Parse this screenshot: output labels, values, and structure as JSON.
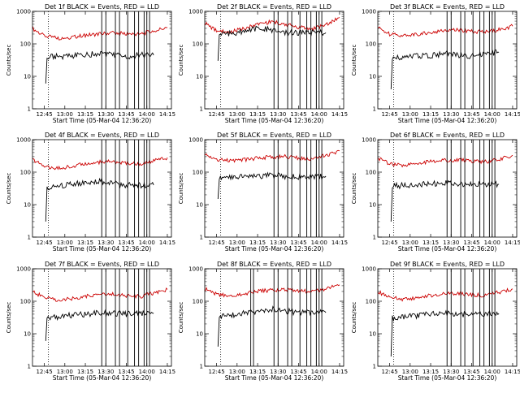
{
  "chart_data": [
    {
      "type": "line",
      "title": "Det 1f BLACK = Events, RED = LLD",
      "xlabel": "Start Time (05-Mar-04 12:36:20)",
      "ylabel": "Counts/sec",
      "yscale": "log",
      "ylim": [
        1,
        1000
      ],
      "y_ticks": [
        "1",
        "10",
        "100",
        "1000"
      ],
      "xlim": [
        "12:36:20",
        "14:18:00"
      ],
      "x_ticks": [
        "12:45",
        "13:00",
        "13:15",
        "13:30",
        "13:45",
        "14:00",
        "14:15"
      ],
      "dotted_marker": "12:48",
      "event_boundaries": [
        "13:27",
        "13:30",
        "13:37",
        "13:40",
        "13:46",
        "13:51",
        "13:54",
        "13:58",
        "14:00",
        "14:02"
      ],
      "series": [
        {
          "color": "#cc0000",
          "x": [
            "12:36",
            "12:45",
            "12:55",
            "13:05",
            "13:15",
            "13:25",
            "13:35",
            "13:45",
            "13:55",
            "14:05",
            "14:15"
          ],
          "y": [
            300,
            175,
            150,
            160,
            185,
            200,
            220,
            205,
            200,
            250,
            320
          ]
        },
        {
          "color": "#000000",
          "x": [
            "12:46",
            "12:47",
            "12:50",
            "13:00",
            "13:10",
            "13:20",
            "13:27",
            "13:35",
            "13:45",
            "13:55",
            "14:05"
          ],
          "y": [
            6,
            35,
            40,
            42,
            45,
            48,
            52,
            45,
            40,
            45,
            45
          ]
        }
      ]
    },
    {
      "type": "line",
      "title": "Det 2f BLACK = Events, RED = LLD",
      "xlabel": "Start Time (05-Mar-04 12:36:20)",
      "ylabel": "Counts/sec",
      "yscale": "log",
      "ylim": [
        1,
        1000
      ],
      "y_ticks": [
        "1",
        "10",
        "100",
        "1000"
      ],
      "xlim": [
        "12:36:20",
        "14:18:00"
      ],
      "x_ticks": [
        "12:45",
        "13:00",
        "13:15",
        "13:30",
        "13:45",
        "14:00",
        "14:15"
      ],
      "dotted_marker": "12:48",
      "event_boundaries": [
        "13:27",
        "13:30",
        "13:37",
        "13:40",
        "13:46",
        "13:51",
        "13:54",
        "13:58",
        "14:00",
        "14:02"
      ],
      "series": [
        {
          "color": "#cc0000",
          "x": [
            "12:36",
            "12:45",
            "12:55",
            "13:05",
            "13:15",
            "13:25",
            "13:35",
            "13:45",
            "13:55",
            "14:05",
            "14:15"
          ],
          "y": [
            450,
            250,
            230,
            300,
            400,
            480,
            400,
            330,
            280,
            400,
            650
          ]
        },
        {
          "color": "#000000",
          "x": [
            "12:46",
            "12:47",
            "12:50",
            "13:00",
            "13:10",
            "13:20",
            "13:27",
            "13:35",
            "13:45",
            "13:55",
            "14:05"
          ],
          "y": [
            30,
            200,
            200,
            220,
            280,
            300,
            260,
            220,
            220,
            220,
            220
          ]
        }
      ]
    },
    {
      "type": "line",
      "title": "Det 3f BLACK = Events, RED = LLD",
      "xlabel": "Start Time (05-Mar-04 12:36:20)",
      "ylabel": "Counts/sec",
      "yscale": "log",
      "ylim": [
        1,
        1000
      ],
      "y_ticks": [
        "1",
        "10",
        "100",
        "1000"
      ],
      "xlim": [
        "12:36:20",
        "14:18:00"
      ],
      "x_ticks": [
        "12:45",
        "13:00",
        "13:15",
        "13:30",
        "13:45",
        "14:00",
        "14:15"
      ],
      "dotted_marker": "12:48",
      "event_boundaries": [
        "13:27",
        "13:30",
        "13:37",
        "13:40",
        "13:46",
        "13:51",
        "13:54",
        "13:58",
        "14:00",
        "14:02"
      ],
      "series": [
        {
          "color": "#cc0000",
          "x": [
            "12:36",
            "12:45",
            "12:55",
            "13:05",
            "13:15",
            "13:25",
            "13:35",
            "13:45",
            "13:55",
            "14:05",
            "14:15"
          ],
          "y": [
            320,
            200,
            180,
            200,
            230,
            250,
            270,
            240,
            230,
            270,
            350
          ]
        },
        {
          "color": "#000000",
          "x": [
            "12:46",
            "12:47",
            "12:50",
            "13:00",
            "13:10",
            "13:20",
            "13:27",
            "13:35",
            "13:45",
            "13:55",
            "14:05"
          ],
          "y": [
            4,
            35,
            38,
            40,
            42,
            45,
            50,
            45,
            42,
            48,
            55
          ]
        }
      ]
    },
    {
      "type": "line",
      "title": "Det 4f BLACK = Events, RED = LLD",
      "xlabel": "Start Time (05-Mar-04 12:36:20)",
      "ylabel": "Counts/sec",
      "yscale": "log",
      "ylim": [
        1,
        1000
      ],
      "y_ticks": [
        "1",
        "10",
        "100",
        "1000"
      ],
      "xlim": [
        "12:36:20",
        "14:18:00"
      ],
      "x_ticks": [
        "12:45",
        "13:00",
        "13:15",
        "13:30",
        "13:45",
        "14:00",
        "14:15"
      ],
      "dotted_marker": "12:48",
      "event_boundaries": [
        "13:27",
        "13:30",
        "13:37",
        "13:40",
        "13:46",
        "13:51",
        "13:54",
        "13:58",
        "14:00",
        "14:02"
      ],
      "series": [
        {
          "color": "#cc0000",
          "x": [
            "12:36",
            "12:45",
            "12:55",
            "13:05",
            "13:15",
            "13:25",
            "13:35",
            "13:45",
            "13:55",
            "14:05",
            "14:15"
          ],
          "y": [
            250,
            150,
            130,
            150,
            180,
            200,
            210,
            190,
            180,
            220,
            280
          ]
        },
        {
          "color": "#000000",
          "x": [
            "12:46",
            "12:47",
            "12:50",
            "13:00",
            "13:10",
            "13:20",
            "13:27",
            "13:35",
            "13:45",
            "13:55",
            "14:05"
          ],
          "y": [
            3,
            30,
            35,
            40,
            45,
            50,
            52,
            45,
            40,
            40,
            40
          ]
        }
      ]
    },
    {
      "type": "line",
      "title": "Det 5f BLACK = Events, RED = LLD",
      "xlabel": "Start Time (05-Mar-04 12:36:20)",
      "ylabel": "Counts/sec",
      "yscale": "log",
      "ylim": [
        1,
        1000
      ],
      "y_ticks": [
        "1",
        "10",
        "100",
        "1000"
      ],
      "xlim": [
        "12:36:20",
        "14:18:00"
      ],
      "x_ticks": [
        "12:45",
        "13:00",
        "13:15",
        "13:30",
        "13:45",
        "14:00",
        "14:15"
      ],
      "dotted_marker": "12:48",
      "event_boundaries": [
        "13:27",
        "13:30",
        "13:37",
        "13:40",
        "13:46",
        "13:51",
        "13:54",
        "13:58",
        "14:00",
        "14:02"
      ],
      "series": [
        {
          "color": "#cc0000",
          "x": [
            "12:36",
            "12:45",
            "12:55",
            "13:05",
            "13:15",
            "13:25",
            "13:35",
            "13:45",
            "13:55",
            "14:05",
            "14:15"
          ],
          "y": [
            350,
            250,
            220,
            240,
            270,
            290,
            300,
            270,
            260,
            330,
            450
          ]
        },
        {
          "color": "#000000",
          "x": [
            "12:46",
            "12:47",
            "12:50",
            "13:00",
            "13:10",
            "13:20",
            "13:27",
            "13:35",
            "13:45",
            "13:55",
            "14:05"
          ],
          "y": [
            15,
            60,
            65,
            70,
            75,
            78,
            80,
            75,
            72,
            75,
            75
          ]
        }
      ]
    },
    {
      "type": "line",
      "title": "Det 6f BLACK = Events, RED = LLD",
      "xlabel": "Start Time (05-Mar-04 12:36:20)",
      "ylabel": "Counts/sec",
      "yscale": "log",
      "ylim": [
        1,
        1000
      ],
      "y_ticks": [
        "1",
        "10",
        "100",
        "1000"
      ],
      "xlim": [
        "12:36:20",
        "14:18:00"
      ],
      "x_ticks": [
        "12:45",
        "13:00",
        "13:15",
        "13:30",
        "13:45",
        "14:00",
        "14:15"
      ],
      "dotted_marker": "12:48",
      "event_boundaries": [
        "13:27",
        "13:30",
        "13:37",
        "13:40",
        "13:46",
        "13:51",
        "13:54",
        "13:58",
        "14:00",
        "14:02"
      ],
      "series": [
        {
          "color": "#cc0000",
          "x": [
            "12:36",
            "12:45",
            "12:55",
            "13:05",
            "13:15",
            "13:25",
            "13:35",
            "13:45",
            "13:55",
            "14:05",
            "14:15"
          ],
          "y": [
            280,
            180,
            160,
            180,
            210,
            230,
            240,
            220,
            210,
            250,
            330
          ]
        },
        {
          "color": "#000000",
          "x": [
            "12:46",
            "12:47",
            "12:50",
            "13:00",
            "13:10",
            "13:20",
            "13:27",
            "13:35",
            "13:45",
            "13:55",
            "14:05"
          ],
          "y": [
            3,
            35,
            38,
            40,
            42,
            45,
            48,
            44,
            40,
            42,
            42
          ]
        }
      ]
    },
    {
      "type": "line",
      "title": "Det 7f BLACK = Events, RED = LLD",
      "xlabel": "Start Time (05-Mar-04 12:36:20)",
      "ylabel": "Counts/sec",
      "yscale": "log",
      "ylim": [
        1,
        1000
      ],
      "y_ticks": [
        "1",
        "10",
        "100",
        "1000"
      ],
      "xlim": [
        "12:36:20",
        "14:18:00"
      ],
      "x_ticks": [
        "12:45",
        "13:00",
        "13:15",
        "13:30",
        "13:45",
        "14:00",
        "14:15"
      ],
      "dotted_marker": "12:48",
      "event_boundaries": [
        "13:27",
        "13:30",
        "13:37",
        "13:40",
        "13:46",
        "13:51",
        "13:54",
        "13:58",
        "14:00",
        "14:02"
      ],
      "series": [
        {
          "color": "#cc0000",
          "x": [
            "12:36",
            "12:45",
            "12:55",
            "13:05",
            "13:15",
            "13:25",
            "13:35",
            "13:45",
            "13:55",
            "14:05",
            "14:15"
          ],
          "y": [
            200,
            130,
            110,
            120,
            140,
            160,
            170,
            150,
            140,
            180,
            230
          ]
        },
        {
          "color": "#000000",
          "x": [
            "12:46",
            "12:47",
            "12:50",
            "13:00",
            "13:10",
            "13:20",
            "13:27",
            "13:35",
            "13:45",
            "13:55",
            "14:05"
          ],
          "y": [
            6,
            30,
            32,
            35,
            38,
            42,
            45,
            42,
            40,
            42,
            42
          ]
        }
      ]
    },
    {
      "type": "line",
      "title": "Det 8f BLACK = Events, RED = LLD",
      "xlabel": "Start Time (05-Mar-04 12:36:20)",
      "ylabel": "Counts/sec",
      "yscale": "log",
      "ylim": [
        1,
        1000
      ],
      "y_ticks": [
        "1",
        "10",
        "100",
        "1000"
      ],
      "xlim": [
        "12:36:20",
        "14:18:00"
      ],
      "x_ticks": [
        "12:45",
        "13:00",
        "13:15",
        "13:30",
        "13:45",
        "14:00",
        "14:15"
      ],
      "dotted_marker": "12:48",
      "event_boundaries": [
        "13:10",
        "13:12",
        "13:27",
        "13:30",
        "13:37",
        "13:40",
        "13:46",
        "13:51",
        "13:54",
        "13:58",
        "14:00",
        "14:02"
      ],
      "series": [
        {
          "color": "#cc0000",
          "x": [
            "12:36",
            "12:45",
            "12:55",
            "13:05",
            "13:15",
            "13:25",
            "13:35",
            "13:45",
            "13:55",
            "14:05",
            "14:15"
          ],
          "y": [
            250,
            160,
            150,
            170,
            200,
            220,
            230,
            210,
            200,
            240,
            320
          ]
        },
        {
          "color": "#000000",
          "x": [
            "12:46",
            "12:47",
            "12:50",
            "13:00",
            "13:10",
            "13:20",
            "13:27",
            "13:35",
            "13:45",
            "13:55",
            "14:05"
          ],
          "y": [
            4,
            30,
            35,
            40,
            45,
            55,
            58,
            50,
            45,
            45,
            45
          ]
        }
      ]
    },
    {
      "type": "line",
      "title": "Det 9f BLACK = Events, RED = LLD",
      "xlabel": "Start Time (05-Mar-04 12:36:20)",
      "ylabel": "Counts/sec",
      "yscale": "log",
      "ylim": [
        1,
        1000
      ],
      "y_ticks": [
        "1",
        "10",
        "100",
        "1000"
      ],
      "xlim": [
        "12:36:20",
        "14:18:00"
      ],
      "x_ticks": [
        "12:45",
        "13:00",
        "13:15",
        "13:30",
        "13:45",
        "14:00",
        "14:15"
      ],
      "dotted_marker": "12:48",
      "event_boundaries": [
        "13:27",
        "13:30",
        "13:37",
        "13:40",
        "13:46",
        "13:51",
        "13:54",
        "13:58",
        "14:00",
        "14:02"
      ],
      "series": [
        {
          "color": "#cc0000",
          "x": [
            "12:36",
            "12:45",
            "12:55",
            "13:05",
            "13:15",
            "13:25",
            "13:35",
            "13:45",
            "13:55",
            "14:05",
            "14:15"
          ],
          "y": [
            200,
            130,
            115,
            130,
            150,
            170,
            175,
            160,
            150,
            190,
            240
          ]
        },
        {
          "color": "#000000",
          "x": [
            "12:46",
            "12:47",
            "12:50",
            "13:00",
            "13:10",
            "13:20",
            "13:27",
            "13:35",
            "13:45",
            "13:55",
            "14:05"
          ],
          "y": [
            2,
            30,
            32,
            35,
            38,
            42,
            44,
            40,
            38,
            40,
            42
          ]
        }
      ]
    }
  ]
}
